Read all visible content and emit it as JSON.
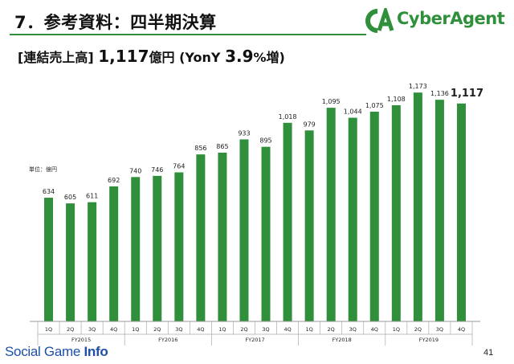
{
  "page": {
    "title": "7．参考資料：四半期決算",
    "headline_prefix": "[連結売上高]",
    "headline_value": "1,117",
    "headline_unit": "億円",
    "headline_growth_prefix": "(YonY",
    "headline_growth_value": "3.9",
    "headline_growth_suffix": "%増)",
    "logo_text": "CyberAgent",
    "unit_label": "単位：億円",
    "footer_brand_a": "Social Game",
    "footer_brand_b": "Info",
    "page_number": "41",
    "bar_color": "#2f8f3a",
    "accent_color": "#2f8f3a"
  },
  "chart_data": {
    "type": "bar",
    "title": "",
    "xlabel": "",
    "ylabel": "",
    "ylim": [
      0,
      1200
    ],
    "grid": false,
    "categories": [
      "1Q",
      "2Q",
      "3Q",
      "4Q",
      "1Q",
      "2Q",
      "3Q",
      "4Q",
      "1Q",
      "2Q",
      "3Q",
      "4Q",
      "1Q",
      "2Q",
      "3Q",
      "4Q",
      "1Q",
      "2Q",
      "3Q",
      "4Q"
    ],
    "fiscal_years": [
      "FY2015",
      "FY2016",
      "FY2017",
      "FY2018",
      "FY2019"
    ],
    "values": [
      634,
      605,
      611,
      692,
      740,
      746,
      764,
      856,
      865,
      933,
      895,
      1018,
      979,
      1095,
      1044,
      1075,
      1108,
      1173,
      1136,
      1117
    ],
    "labels": [
      "634",
      "605",
      "611",
      "692",
      "740",
      "746",
      "764",
      "856",
      "865",
      "933",
      "895",
      "1,018",
      "979",
      "1,095",
      "1,044",
      "1,075",
      "1,108",
      "1,173",
      "1,136",
      "1,117"
    ]
  }
}
